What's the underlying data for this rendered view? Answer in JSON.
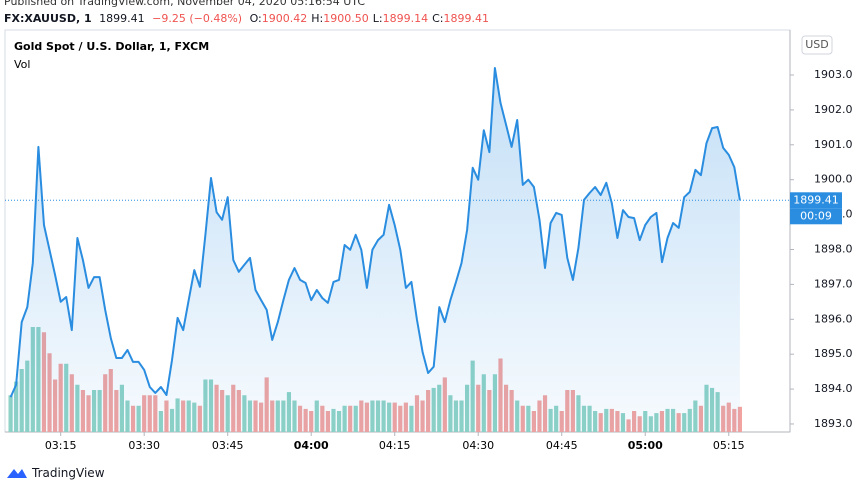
{
  "header": {
    "published": "Published on TradingView.com, November 04, 2020 05:16:54 UTC",
    "symbol": "FX:XAUUSD, 1",
    "price": "1899.41",
    "change": "−9.25 (−0.48%)",
    "ohlc": [
      {
        "label": "O:",
        "value": "1900.42"
      },
      {
        "label": "H:",
        "value": "1900.50"
      },
      {
        "label": "L:",
        "value": "1899.14"
      },
      {
        "label": "C:",
        "value": "1899.41"
      }
    ]
  },
  "footer": {
    "brand": "TradingView"
  },
  "chart_data": {
    "type": "line",
    "title": "Gold Spot / U.S. Dollar, 1, FXCM",
    "subtitle": "Vol",
    "currency": "USD",
    "countdown": "00:09",
    "color": "#2a8de0",
    "volume_colors": {
      "up": "#8fd3c6",
      "down": "#f2a3a0"
    },
    "grid": true,
    "xlim": [
      "03:05",
      "05:26"
    ],
    "ylim": [
      1892.77,
      1904.29
    ],
    "xticks": [
      "03:15",
      "03:30",
      "03:45",
      "04:00",
      "04:15",
      "04:30",
      "04:45",
      "05:00",
      "05:15"
    ],
    "yticks": [
      {
        "value": 1893,
        "label": "1893.00"
      },
      {
        "value": 1894,
        "label": "1894.00"
      },
      {
        "value": 1895,
        "label": "1895.00"
      },
      {
        "value": 1896,
        "label": "1896.00"
      },
      {
        "value": 1897,
        "label": "1897.00"
      },
      {
        "value": 1898,
        "label": "1898.00"
      },
      {
        "value": 1899,
        "label": "1899.00"
      },
      {
        "value": 1900,
        "label": "1900.00"
      },
      {
        "value": 1901,
        "label": "1901.00"
      },
      {
        "value": 1902,
        "label": "1902.00"
      },
      {
        "value": 1903,
        "label": "1903.00"
      }
    ],
    "x": [
      "03:06",
      "03:07",
      "03:08",
      "03:09",
      "03:10",
      "03:11",
      "03:12",
      "03:13",
      "03:14",
      "03:15",
      "03:16",
      "03:17",
      "03:18",
      "03:19",
      "03:20",
      "03:21",
      "03:22",
      "03:23",
      "03:24",
      "03:25",
      "03:26",
      "03:27",
      "03:28",
      "03:29",
      "03:30",
      "03:31",
      "03:32",
      "03:33",
      "03:34",
      "03:35",
      "03:36",
      "03:37",
      "03:38",
      "03:39",
      "03:40",
      "03:41",
      "03:42",
      "03:43",
      "03:44",
      "03:45",
      "03:46",
      "03:47",
      "03:48",
      "03:49",
      "03:50",
      "03:51",
      "03:52",
      "03:53",
      "03:54",
      "03:55",
      "03:56",
      "03:57",
      "03:58",
      "03:59",
      "04:00",
      "04:01",
      "04:02",
      "04:03",
      "04:04",
      "04:05",
      "04:06",
      "04:07",
      "04:08",
      "04:09",
      "04:10",
      "04:11",
      "04:12",
      "04:13",
      "04:14",
      "04:15",
      "04:16",
      "04:17",
      "04:18",
      "04:19",
      "04:20",
      "04:21",
      "04:22",
      "04:23",
      "04:24",
      "04:25",
      "04:26",
      "04:27",
      "04:28",
      "04:29",
      "04:30",
      "04:31",
      "04:32",
      "04:33",
      "04:34",
      "04:35",
      "04:36",
      "04:37",
      "04:38",
      "04:39",
      "04:40",
      "04:41",
      "04:42",
      "04:43",
      "04:44",
      "04:45",
      "04:46",
      "04:47",
      "04:48",
      "04:49",
      "04:50",
      "04:51",
      "04:52",
      "04:53",
      "04:54",
      "04:55",
      "04:56",
      "04:57",
      "04:58",
      "04:59",
      "05:00",
      "05:01",
      "05:02",
      "05:03",
      "05:04",
      "05:05",
      "05:06",
      "05:07",
      "05:08",
      "05:09",
      "05:10",
      "05:11",
      "05:12",
      "05:13",
      "05:14",
      "05:15",
      "05:16",
      "05:17"
    ],
    "values": [
      1893.77,
      1894.12,
      1895.92,
      1896.35,
      1897.61,
      1900.94,
      1898.7,
      1897.99,
      1897.27,
      1896.5,
      1896.64,
      1895.69,
      1898.33,
      1897.7,
      1896.9,
      1897.21,
      1897.21,
      1896.27,
      1895.46,
      1894.89,
      1894.89,
      1895.12,
      1894.78,
      1894.78,
      1894.55,
      1894.06,
      1893.89,
      1894.06,
      1893.83,
      1894.83,
      1896.04,
      1895.69,
      1896.55,
      1897.41,
      1896.93,
      1898.42,
      1900.05,
      1899.07,
      1898.85,
      1899.5,
      1897.7,
      1897.36,
      1897.56,
      1897.76,
      1896.84,
      1896.55,
      1896.27,
      1895.41,
      1895.92,
      1896.55,
      1897.13,
      1897.47,
      1897.13,
      1897.04,
      1896.55,
      1896.84,
      1896.61,
      1896.47,
      1897.07,
      1897.13,
      1898.13,
      1897.99,
      1898.42,
      1897.99,
      1896.9,
      1897.99,
      1898.27,
      1898.42,
      1899.28,
      1898.7,
      1897.99,
      1896.9,
      1897.07,
      1895.98,
      1895.06,
      1894.46,
      1894.64,
      1896.35,
      1895.92,
      1896.55,
      1897.07,
      1897.61,
      1898.56,
      1900.34,
      1900.0,
      1901.42,
      1900.79,
      1903.2,
      1902.2,
      1901.57,
      1900.94,
      1901.71,
      1899.85,
      1900.0,
      1899.79,
      1898.85,
      1897.47,
      1898.76,
      1899.05,
      1898.99,
      1897.76,
      1897.13,
      1898.04,
      1899.42,
      1899.62,
      1899.79,
      1899.56,
      1899.91,
      1899.33,
      1898.33,
      1899.13,
      1898.93,
      1898.9,
      1898.27,
      1898.7,
      1898.93,
      1899.05,
      1897.64,
      1898.33,
      1898.76,
      1898.62,
      1899.5,
      1899.65,
      1900.28,
      1900.13,
      1901.05,
      1901.48,
      1901.51,
      1900.91,
      1900.71,
      1900.36,
      1899.41
    ],
    "volume": [
      35,
      48,
      60,
      68,
      100,
      100,
      95,
      75,
      50,
      65,
      65,
      55,
      45,
      40,
      35,
      40,
      40,
      55,
      60,
      40,
      45,
      30,
      25,
      25,
      35,
      35,
      35,
      20,
      30,
      22,
      32,
      30,
      30,
      28,
      25,
      50,
      50,
      45,
      40,
      35,
      45,
      40,
      35,
      30,
      30,
      28,
      52,
      30,
      30,
      30,
      38,
      30,
      25,
      22,
      20,
      30,
      25,
      20,
      22,
      20,
      25,
      25,
      25,
      30,
      28,
      30,
      30,
      30,
      28,
      28,
      25,
      28,
      25,
      35,
      30,
      40,
      42,
      45,
      52,
      35,
      30,
      30,
      45,
      68,
      45,
      55,
      40,
      55,
      70,
      45,
      40,
      30,
      25,
      25,
      20,
      30,
      35,
      22,
      25,
      20,
      40,
      40,
      35,
      25,
      25,
      20,
      18,
      22,
      22,
      20,
      18,
      12,
      20,
      15,
      20,
      15,
      18,
      20,
      22,
      22,
      18,
      18,
      22,
      30,
      25,
      45,
      42,
      38,
      25,
      28,
      22,
      24
    ]
  }
}
